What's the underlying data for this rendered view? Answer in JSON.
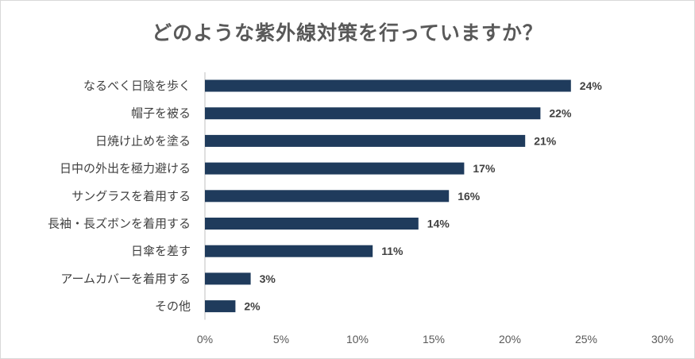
{
  "chart_data": {
    "type": "bar",
    "orientation": "horizontal",
    "title": "どのような紫外線対策を行っていますか？",
    "categories": [
      "なるべく日陰を歩く",
      "帽子を被る",
      "日焼け止めを塗る",
      "日中の外出を極力避ける",
      "サングラスを着用する",
      "長袖・長ズボンを着用する",
      "日傘を差す",
      "アームカバーを着用する",
      "その他"
    ],
    "values": [
      24,
      22,
      21,
      17,
      16,
      14,
      11,
      3,
      2
    ],
    "data_labels": [
      "24%",
      "22%",
      "21%",
      "17%",
      "16%",
      "14%",
      "11%",
      "3%",
      "2%"
    ],
    "xlim": [
      0,
      30
    ],
    "x_ticks": [
      0,
      5,
      10,
      15,
      20,
      25,
      30
    ],
    "x_tick_labels": [
      "0%",
      "5%",
      "10%",
      "15%",
      "20%",
      "25%",
      "30%"
    ],
    "xlabel": "",
    "ylabel": "",
    "grid": false,
    "legend": "none",
    "bar_color": "#1f3b5c"
  }
}
